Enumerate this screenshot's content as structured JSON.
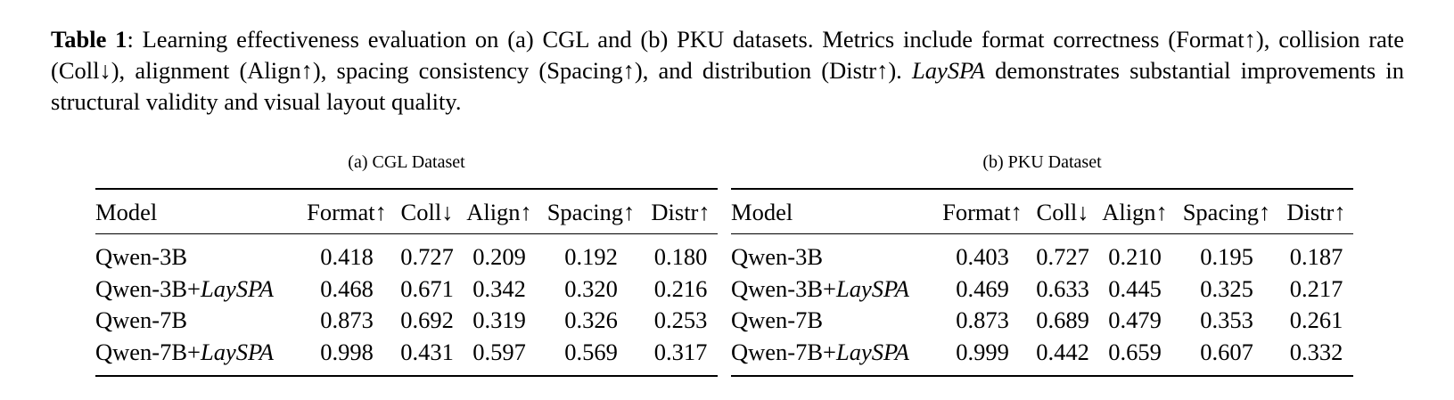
{
  "caption": {
    "label": "Table 1",
    "sep": ": ",
    "text_1": "Learning effectiveness evaluation on (a) CGL and (b) PKU datasets. Metrics include format correctness (Format↑), collision rate (Coll↓), alignment (Align↑), spacing consistency (Spacing↑), and distribution (Distr↑). ",
    "method": "LaySPA",
    "text_2": " demonstrates substantial improvements in structural validity and visual layout quality."
  },
  "headers": [
    "Model",
    "Format↑",
    "Coll↓",
    "Align↑",
    "Spacing↑",
    "Distr↑"
  ],
  "method_name": "LaySPA",
  "tables": [
    {
      "subcaption": "(a) CGL Dataset",
      "rows": [
        {
          "model_base": "Qwen-3B",
          "model_suffix": "",
          "values": [
            "0.418",
            "0.727",
            "0.209",
            "0.192",
            "0.180"
          ]
        },
        {
          "model_base": "Qwen-3B+",
          "model_suffix": "LaySPA",
          "values": [
            "0.468",
            "0.671",
            "0.342",
            "0.320",
            "0.216"
          ]
        },
        {
          "model_base": "Qwen-7B",
          "model_suffix": "",
          "values": [
            "0.873",
            "0.692",
            "0.319",
            "0.326",
            "0.253"
          ]
        },
        {
          "model_base": "Qwen-7B+",
          "model_suffix": "LaySPA",
          "values": [
            "0.998",
            "0.431",
            "0.597",
            "0.569",
            "0.317"
          ]
        }
      ]
    },
    {
      "subcaption": "(b) PKU Dataset",
      "rows": [
        {
          "model_base": "Qwen-3B",
          "model_suffix": "",
          "values": [
            "0.403",
            "0.727",
            "0.210",
            "0.195",
            "0.187"
          ]
        },
        {
          "model_base": "Qwen-3B+",
          "model_suffix": "LaySPA",
          "values": [
            "0.469",
            "0.633",
            "0.445",
            "0.325",
            "0.217"
          ]
        },
        {
          "model_base": "Qwen-7B",
          "model_suffix": "",
          "values": [
            "0.873",
            "0.689",
            "0.479",
            "0.353",
            "0.261"
          ]
        },
        {
          "model_base": "Qwen-7B+",
          "model_suffix": "LaySPA",
          "values": [
            "0.999",
            "0.442",
            "0.659",
            "0.607",
            "0.332"
          ]
        }
      ]
    }
  ]
}
